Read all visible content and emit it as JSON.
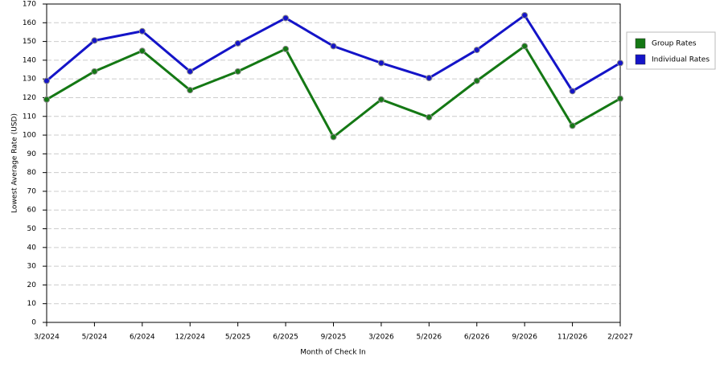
{
  "chart_data": {
    "type": "line",
    "xlabel": "Month of Check In",
    "ylabel": "Lowest Average Rate (USD)",
    "categories": [
      "3/2024",
      "5/2024",
      "6/2024",
      "12/2024",
      "5/2025",
      "6/2025",
      "9/2025",
      "3/2026",
      "5/2026",
      "6/2026",
      "9/2026",
      "11/2026",
      "2/2027"
    ],
    "series": [
      {
        "name": "Group Rates",
        "color": "#147814",
        "values": [
          119,
          134,
          145,
          124,
          134,
          146,
          99,
          119,
          109.5,
          129,
          147.5,
          105,
          119.5
        ]
      },
      {
        "name": "Individual Rates",
        "color": "#1414c8",
        "values": [
          129,
          150.5,
          155.5,
          134,
          149,
          162.5,
          147.5,
          138.5,
          130.5,
          145.5,
          164,
          123.5,
          138.5
        ]
      }
    ],
    "ylim": [
      0,
      170
    ],
    "yticks": [
      0,
      10,
      20,
      30,
      40,
      50,
      60,
      70,
      80,
      90,
      100,
      110,
      120,
      130,
      140,
      150,
      160,
      170
    ],
    "grid": true,
    "legend": "right"
  }
}
